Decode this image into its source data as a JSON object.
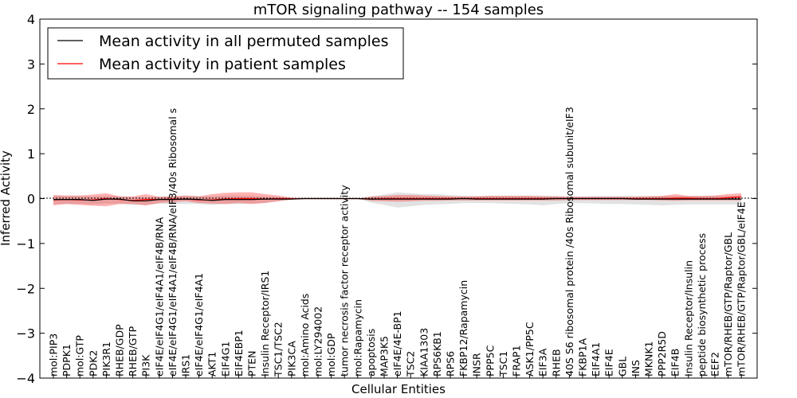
{
  "chart_data": {
    "type": "line",
    "title": "mTOR signaling pathway -- 154 samples",
    "xlabel": "Cellular Entities",
    "ylabel": "Inferred Activity",
    "ylim": [
      -4,
      4
    ],
    "yticks": [
      -4,
      -3,
      -2,
      -1,
      0,
      1,
      2,
      3,
      4
    ],
    "ytick_labels": [
      "−4",
      "−3",
      "−2",
      "−1",
      "0",
      "1",
      "2",
      "3",
      "4"
    ],
    "legend_position": "top-left",
    "categories": [
      "mol:PIP3",
      "PDPK1",
      "mol:GTP",
      "PDK2",
      "PIK3R1",
      "RHEB/GDP",
      "RHEB/GTP",
      "PI3K",
      "eIF4E/eIF4G1/eIF4A1/eIF4B/RNA",
      "eIF4E/eIF4G1/eIF4A1/eIF4B/RNA/eIF3/40s Ribosomal s",
      "IRS1",
      "eIF4E/eIF4G1/eIF4A1",
      "AKT1",
      "EIF4G1",
      "EIF4EBP1",
      "PTEN",
      "Insulin Receptor/IRS1",
      "TSC1/TSC2",
      "PIK3CA",
      "mol:Amino Acids",
      "mol:LY294002",
      "mol:GDP",
      "tumor necrosis factor receptor activity",
      "mol:Rapamycin",
      "apoptosis",
      "MAP3K5",
      "eIF4E/4E-BP1",
      "TSC2",
      "KIAA1303",
      "RPS6KB1",
      "RPS6",
      "FKBP12/Rapamycin",
      "INSR",
      "PPP5C",
      "TSC1",
      "FRAP1",
      "ASK1/PP5C",
      "EIF3A",
      "RHEB",
      "40S S6 ribosomal protein /40s Ribosomal subunit/eIF3",
      "FKBP1A",
      "EIF4A1",
      "EIF4E",
      "GBL",
      "INS",
      "MKNK1",
      "PPP2R5D",
      "EIF4B",
      "Insulin Receptor/Insulin",
      "peptide biosynthetic process",
      "EEF2",
      "mTOR/RHEB/GTP/Raptor/GBL",
      "mTOR/RHEB/GTP/Raptor/GBL/eIF4E"
    ],
    "series": [
      {
        "name": "Mean activity in all permuted samples",
        "color": "#000000",
        "values": [
          -0.02,
          -0.02,
          -0.02,
          -0.04,
          -0.01,
          -0.01,
          -0.05,
          -0.05,
          -0.02,
          -0.02,
          -0.01,
          -0.02,
          -0.04,
          -0.02,
          -0.02,
          -0.02,
          -0.01,
          -0.01,
          -0.01,
          0.0,
          0.0,
          0.0,
          0.0,
          0.0,
          -0.01,
          -0.01,
          -0.01,
          -0.01,
          -0.01,
          -0.01,
          -0.01,
          0.0,
          -0.01,
          -0.01,
          -0.01,
          -0.01,
          -0.01,
          -0.01,
          0.0,
          0.0,
          0.0,
          0.0,
          0.0,
          0.0,
          -0.01,
          -0.01,
          -0.01,
          -0.01,
          -0.01,
          -0.01,
          -0.01,
          -0.01,
          -0.01
        ],
        "band_upper": [
          0.06,
          0.06,
          0.06,
          0.05,
          0.06,
          0.06,
          0.03,
          0.03,
          0.05,
          0.06,
          0.07,
          0.06,
          0.05,
          0.07,
          0.07,
          0.06,
          0.05,
          0.03,
          0.01,
          0.0,
          0.0,
          0.0,
          0.0,
          0.0,
          0.05,
          0.09,
          0.14,
          0.12,
          0.1,
          0.1,
          0.08,
          0.06,
          0.06,
          0.07,
          0.07,
          0.07,
          0.07,
          0.07,
          0.06,
          0.05,
          0.05,
          0.06,
          0.06,
          0.06,
          0.06,
          0.06,
          0.06,
          0.06,
          0.06,
          0.06,
          0.06,
          0.06,
          0.06
        ],
        "band_lower": [
          -0.12,
          -0.12,
          -0.12,
          -0.13,
          -0.11,
          -0.11,
          -0.14,
          -0.14,
          -0.11,
          -0.12,
          -0.12,
          -0.12,
          -0.14,
          -0.12,
          -0.12,
          -0.11,
          -0.09,
          -0.06,
          -0.02,
          0.0,
          0.0,
          0.0,
          0.0,
          0.0,
          -0.09,
          -0.14,
          -0.2,
          -0.17,
          -0.14,
          -0.13,
          -0.12,
          -0.1,
          -0.1,
          -0.1,
          -0.11,
          -0.12,
          -0.13,
          -0.15,
          -0.12,
          -0.1,
          -0.1,
          -0.11,
          -0.12,
          -0.12,
          -0.13,
          -0.14,
          -0.15,
          -0.14,
          -0.13,
          -0.13,
          -0.13,
          -0.13,
          -0.13
        ]
      },
      {
        "name": "Mean activity in patient samples",
        "color": "#ff0000",
        "values": [
          -0.03,
          -0.02,
          -0.03,
          -0.03,
          0.0,
          -0.02,
          -0.04,
          -0.02,
          -0.02,
          -0.01,
          -0.01,
          -0.03,
          -0.03,
          -0.01,
          0.0,
          0.0,
          -0.01,
          0.0,
          0.0,
          0.0,
          0.0,
          0.0,
          0.0,
          0.0,
          -0.01,
          0.0,
          0.0,
          0.0,
          0.0,
          0.0,
          0.0,
          0.0,
          0.0,
          0.0,
          0.0,
          0.0,
          0.0,
          0.0,
          0.0,
          0.0,
          0.0,
          0.0,
          0.0,
          0.0,
          0.0,
          0.0,
          0.0,
          0.01,
          0.01,
          0.0,
          0.0,
          0.02,
          0.04
        ],
        "band_upper": [
          0.08,
          0.07,
          0.07,
          0.09,
          0.12,
          0.05,
          0.05,
          0.1,
          0.04,
          0.05,
          0.07,
          0.05,
          0.1,
          0.13,
          0.14,
          0.14,
          0.1,
          0.07,
          0.02,
          0.0,
          0.0,
          0.0,
          0.0,
          0.0,
          0.05,
          0.06,
          0.08,
          0.08,
          0.07,
          0.06,
          0.05,
          0.05,
          0.05,
          0.06,
          0.06,
          0.06,
          0.06,
          0.05,
          0.05,
          0.04,
          0.04,
          0.04,
          0.04,
          0.04,
          0.04,
          0.05,
          0.06,
          0.1,
          0.06,
          0.06,
          0.07,
          0.1,
          0.12
        ],
        "band_lower": [
          -0.15,
          -0.12,
          -0.14,
          -0.16,
          -0.17,
          -0.12,
          -0.12,
          -0.15,
          -0.1,
          -0.08,
          -0.06,
          -0.1,
          -0.11,
          -0.12,
          -0.1,
          -0.12,
          -0.1,
          -0.06,
          -0.02,
          0.0,
          0.0,
          0.0,
          0.0,
          0.0,
          -0.05,
          -0.06,
          -0.07,
          -0.06,
          -0.05,
          -0.05,
          -0.04,
          -0.04,
          -0.04,
          -0.04,
          -0.04,
          -0.04,
          -0.04,
          -0.04,
          -0.04,
          -0.03,
          -0.03,
          -0.03,
          -0.03,
          -0.03,
          -0.03,
          -0.03,
          -0.04,
          -0.05,
          -0.04,
          -0.04,
          -0.04,
          -0.04,
          -0.04
        ]
      }
    ]
  }
}
